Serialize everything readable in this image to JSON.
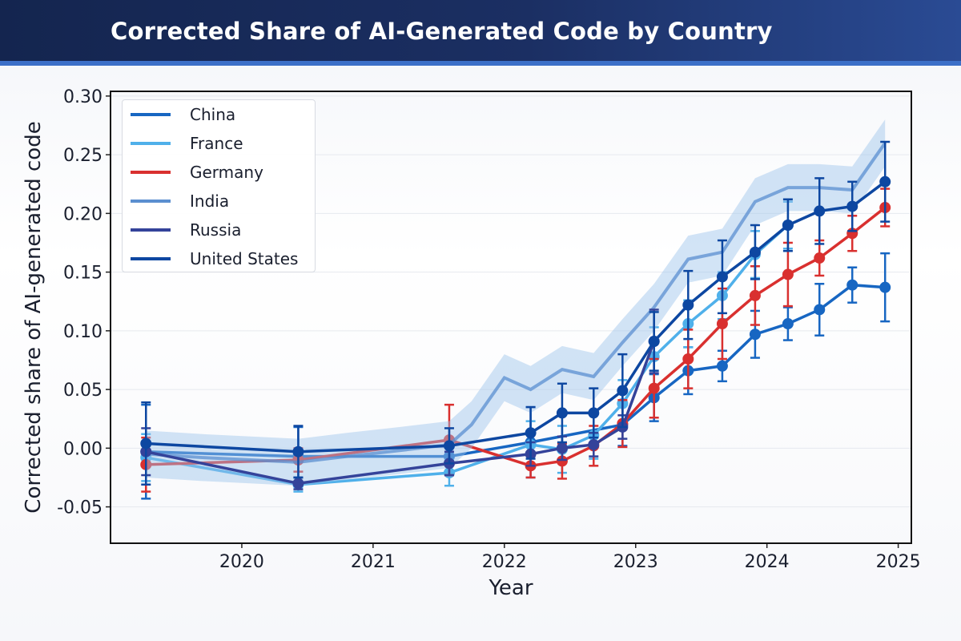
{
  "chart_data": {
    "type": "line",
    "title": "Corrected Share of AI-Generated Code by Country",
    "xlabel": "Year",
    "ylabel": "Corrected share of AI-generated code",
    "xlim": [
      2019.0,
      2025.1
    ],
    "ylim": [
      -0.081,
      0.304
    ],
    "xticks": [
      2020,
      2021,
      2022,
      2023,
      2024,
      2025
    ],
    "yticks": [
      -0.05,
      0.0,
      0.05,
      0.1,
      0.15,
      0.2,
      0.25,
      0.3
    ],
    "ytick_labels": [
      "-0.05",
      "0.00",
      "0.05",
      "0.10",
      "0.15",
      "0.20",
      "0.25",
      "0.30"
    ],
    "grid": "horizontal",
    "legend_position": "top-left",
    "series": [
      {
        "name": "China",
        "color": "#1766c2",
        "x": [
          2019.27,
          2020.43,
          2021.58,
          2022.2,
          2022.9,
          2023.14,
          2023.4,
          2023.66,
          2023.91,
          2024.16,
          2024.4,
          2024.65,
          2024.9
        ],
        "y": [
          -0.003,
          -0.007,
          -0.007,
          0.005,
          0.02,
          0.043,
          0.066,
          0.07,
          0.097,
          0.106,
          0.118,
          0.139,
          0.137
        ],
        "err": [
          0.04,
          0.025,
          0.015,
          0.03,
          0.018,
          0.02,
          0.02,
          0.013,
          0.02,
          0.014,
          0.022,
          0.015,
          0.029
        ]
      },
      {
        "name": "France",
        "color": "#4fb0ea",
        "x": [
          2019.27,
          2020.43,
          2021.58,
          2022.2,
          2022.44,
          2022.68,
          2022.9,
          2023.14,
          2023.4,
          2023.66,
          2023.91,
          2024.16
        ],
        "y": [
          -0.008,
          -0.031,
          -0.021,
          0.003,
          -0.001,
          0.011,
          0.038,
          0.078,
          0.106,
          0.13,
          0.165,
          0.19
        ],
        "err": [
          0.02,
          0.006,
          0.011,
          0.02,
          0.02,
          0.02,
          0.02,
          0.025,
          0.02,
          0.02,
          0.02,
          0.02
        ]
      },
      {
        "name": "Germany",
        "color": "#d9302f",
        "x": [
          2019.27,
          2020.43,
          2021.58,
          2022.2,
          2022.44,
          2022.68,
          2022.9,
          2023.14,
          2023.4,
          2023.66,
          2023.91,
          2024.16,
          2024.4,
          2024.65,
          2024.9
        ],
        "y": [
          -0.014,
          -0.01,
          0.007,
          -0.015,
          -0.011,
          0.002,
          0.021,
          0.051,
          0.076,
          0.106,
          0.13,
          0.148,
          0.162,
          0.183,
          0.205
        ],
        "err": [
          0.023,
          0.01,
          0.03,
          0.01,
          0.015,
          0.017,
          0.02,
          0.025,
          0.025,
          0.03,
          0.025,
          0.027,
          0.015,
          0.015,
          0.016
        ]
      },
      {
        "name": "India",
        "color": "#5b8fd0",
        "band": 0.02,
        "x": [
          2019.27,
          2019.7,
          2020.43,
          2020.8,
          2021.2,
          2021.58,
          2021.75,
          2022.0,
          2022.2,
          2022.44,
          2022.68,
          2022.9,
          2023.14,
          2023.4,
          2023.66,
          2023.91,
          2024.16,
          2024.4,
          2024.65,
          2024.9
        ],
        "y": [
          -0.005,
          -0.008,
          -0.012,
          -0.007,
          -0.002,
          0.003,
          0.02,
          0.06,
          0.05,
          0.067,
          0.061,
          0.09,
          0.12,
          0.161,
          0.167,
          0.21,
          0.222,
          0.222,
          0.22,
          0.26
        ],
        "err": []
      },
      {
        "name": "Russia",
        "color": "#34439a",
        "x": [
          2019.27,
          2020.43,
          2021.58,
          2022.2,
          2022.44,
          2022.68,
          2022.9,
          2023.14
        ],
        "y": [
          -0.003,
          -0.03,
          -0.013,
          -0.005,
          0.0,
          0.003,
          0.018,
          0.091
        ],
        "err": [
          0.02,
          0.005,
          0.01,
          0.01,
          0.01,
          0.01,
          0.01,
          0.027
        ]
      },
      {
        "name": "United States",
        "color": "#0d47a1",
        "x": [
          2019.27,
          2020.43,
          2021.58,
          2022.2,
          2022.44,
          2022.68,
          2022.9,
          2023.14,
          2023.4,
          2023.66,
          2023.91,
          2024.16,
          2024.4,
          2024.65,
          2024.9
        ],
        "y": [
          0.004,
          -0.003,
          0.002,
          0.013,
          0.03,
          0.03,
          0.049,
          0.091,
          0.122,
          0.146,
          0.167,
          0.19,
          0.202,
          0.206,
          0.227
        ],
        "err": [
          0.035,
          0.022,
          0.015,
          0.022,
          0.025,
          0.021,
          0.031,
          0.025,
          0.029,
          0.031,
          0.023,
          0.022,
          0.028,
          0.021,
          0.034
        ]
      }
    ]
  }
}
